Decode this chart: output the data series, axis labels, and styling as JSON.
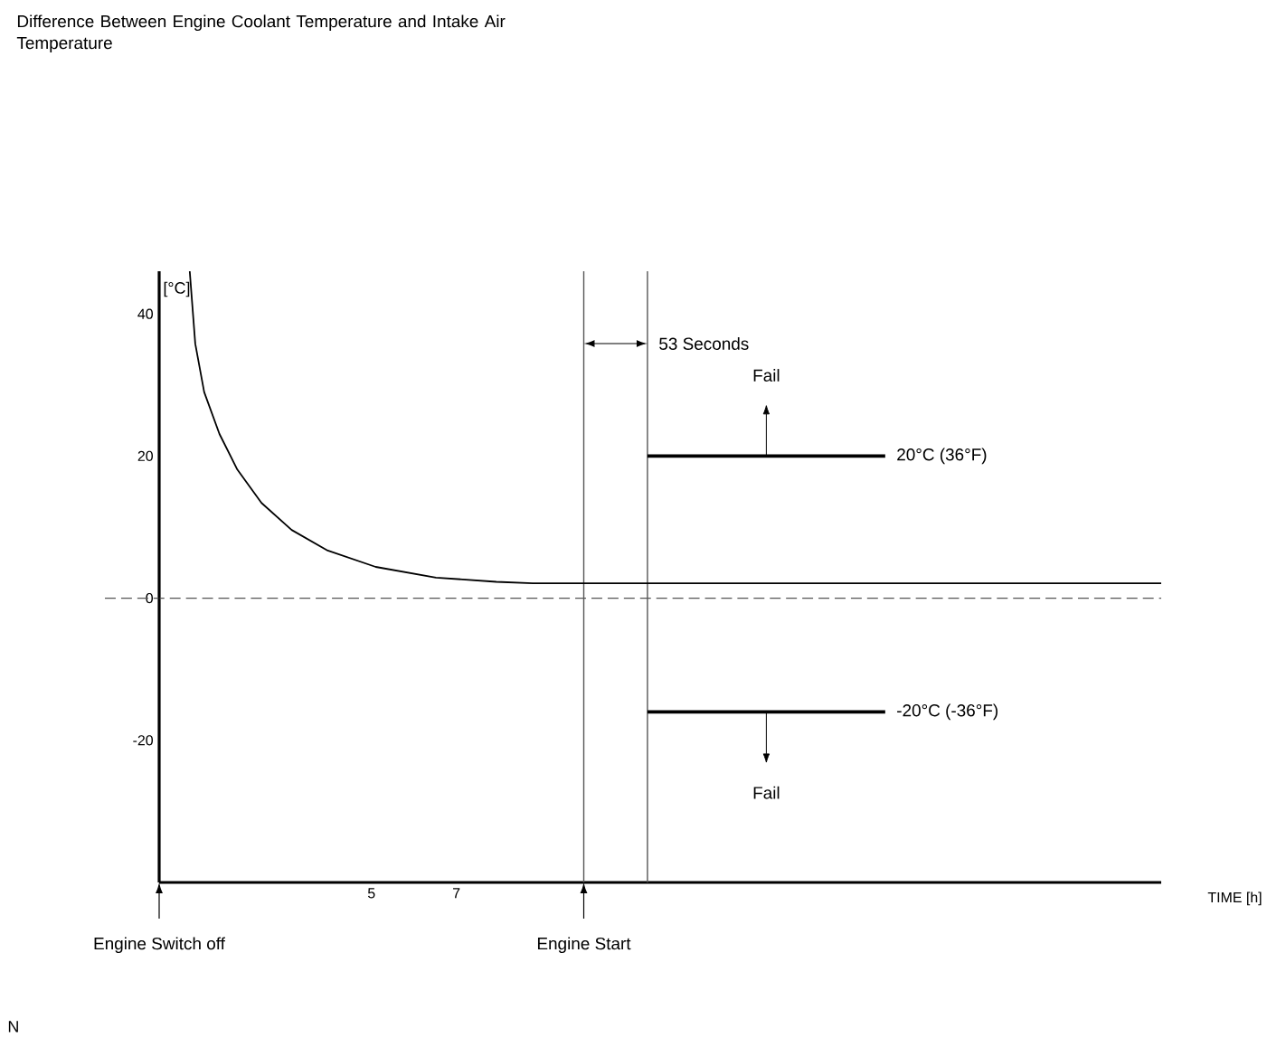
{
  "chart_data": {
    "type": "line",
    "title": "Difference Between Engine Coolant Temperature and Intake Air Temperature",
    "xlabel": "TIME [h]",
    "ylabel": "[°C]",
    "xlim": [
      0,
      23.6
    ],
    "ylim": [
      -40,
      46
    ],
    "xticks": [
      5,
      7
    ],
    "yticks": [
      -20,
      0,
      20,
      40
    ],
    "series": [
      {
        "color": "#000000",
        "x": [
          0.72,
          0.85,
          1.06,
          1.42,
          1.84,
          2.41,
          3.12,
          3.97,
          5.1,
          6.52,
          7.94,
          8.8,
          10,
          23.6
        ],
        "values": [
          46,
          35.8,
          29,
          23.1,
          18.1,
          13.4,
          9.6,
          6.7,
          4.4,
          2.9,
          2.3,
          2.1,
          2.1,
          2.1
        ]
      },
      {
        "color": "#000000",
        "x": [
          11.5,
          17.1
        ],
        "values": [
          20,
          20
        ]
      },
      {
        "color": "#000000",
        "x": [
          11.5,
          17.1
        ],
        "values": [
          -16,
          -16
        ]
      }
    ],
    "ref_lines": [
      {
        "axis": "y",
        "value": 0,
        "line_style": "dashed",
        "color": "#555555"
      },
      {
        "axis": "x",
        "value": 0,
        "label": "Engine Switch off",
        "color": "#000000"
      },
      {
        "axis": "x",
        "value": 10,
        "label": "Engine Start",
        "color": "#555555"
      },
      {
        "axis": "x",
        "value": 11.5,
        "color": "#555555"
      }
    ],
    "annotations": [
      "53 Seconds",
      "Fail",
      "20°C (36°F)",
      "-20°C (-36°F)",
      "Fail",
      "N"
    ]
  }
}
